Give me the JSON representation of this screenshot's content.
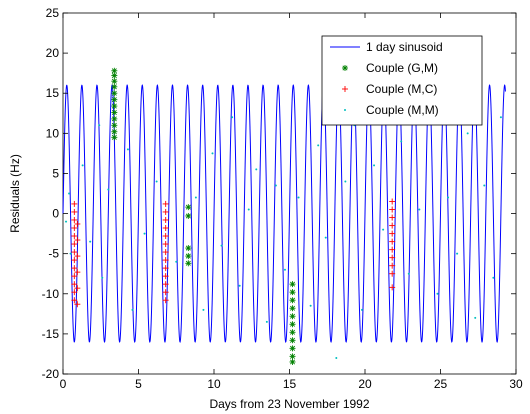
{
  "chart_data": {
    "type": "line",
    "xlabel": "Days from 23 November 1992",
    "ylabel": "Residuals (Hz)",
    "xlim": [
      0,
      30
    ],
    "ylim": [
      -20,
      25
    ],
    "xticks": [
      0,
      5,
      10,
      15,
      20,
      25,
      30
    ],
    "yticks": [
      -20,
      -15,
      -10,
      -5,
      0,
      5,
      10,
      15,
      20,
      25
    ],
    "grid": false,
    "legend_position": "top-right",
    "series": [
      {
        "name": "1 day sinusoid",
        "kind": "line",
        "color": "#0000ff",
        "amplitude": 16,
        "period_days": 1,
        "x_range": [
          0,
          29.3
        ]
      },
      {
        "name": "Couple (G,M)",
        "kind": "marker",
        "marker": "*",
        "color": "#008000",
        "points": [
          [
            3.4,
            17.8
          ],
          [
            3.4,
            17.2
          ],
          [
            3.4,
            16.5
          ],
          [
            3.4,
            15.8
          ],
          [
            3.4,
            15.0
          ],
          [
            3.4,
            14.2
          ],
          [
            3.4,
            13.4
          ],
          [
            3.4,
            12.6
          ],
          [
            3.4,
            11.8
          ],
          [
            3.4,
            11.0
          ],
          [
            3.4,
            10.2
          ],
          [
            3.4,
            9.5
          ],
          [
            8.3,
            0.8
          ],
          [
            8.3,
            -0.3
          ],
          [
            8.3,
            -4.3
          ],
          [
            8.3,
            -5.3
          ],
          [
            8.3,
            -6.2
          ],
          [
            15.2,
            -8.8
          ],
          [
            15.2,
            -9.8
          ],
          [
            15.2,
            -10.8
          ],
          [
            15.2,
            -11.8
          ],
          [
            15.2,
            -12.8
          ],
          [
            15.2,
            -13.8
          ],
          [
            15.2,
            -14.8
          ],
          [
            15.2,
            -15.8
          ],
          [
            15.2,
            -16.8
          ],
          [
            15.2,
            -17.8
          ],
          [
            15.2,
            -18.5
          ]
        ]
      },
      {
        "name": "Couple (M,C)",
        "kind": "marker",
        "marker": "+",
        "color": "#ff0000",
        "points": [
          [
            0.75,
            1.2
          ],
          [
            0.75,
            0.2
          ],
          [
            0.75,
            -0.8
          ],
          [
            0.75,
            -1.8
          ],
          [
            0.75,
            -2.8
          ],
          [
            0.75,
            -3.8
          ],
          [
            0.75,
            -4.8
          ],
          [
            0.75,
            -5.8
          ],
          [
            0.75,
            -6.8
          ],
          [
            0.75,
            -7.8
          ],
          [
            0.75,
            -8.8
          ],
          [
            0.75,
            -9.8
          ],
          [
            0.75,
            -10.8
          ],
          [
            0.95,
            -1.3
          ],
          [
            0.95,
            -3.3
          ],
          [
            0.95,
            -5.3
          ],
          [
            0.95,
            -7.3
          ],
          [
            0.95,
            -9.3
          ],
          [
            0.95,
            -11.3
          ],
          [
            6.8,
            1.2
          ],
          [
            6.8,
            0.2
          ],
          [
            6.8,
            -0.8
          ],
          [
            6.8,
            -1.8
          ],
          [
            6.8,
            -2.8
          ],
          [
            6.8,
            -3.8
          ],
          [
            6.8,
            -4.8
          ],
          [
            6.8,
            -5.8
          ],
          [
            6.8,
            -6.8
          ],
          [
            6.8,
            -7.8
          ],
          [
            6.8,
            -8.8
          ],
          [
            6.8,
            -9.8
          ],
          [
            6.8,
            -10.8
          ],
          [
            21.8,
            1.5
          ],
          [
            21.8,
            0.5
          ],
          [
            21.8,
            -0.5
          ],
          [
            21.8,
            -1.5
          ],
          [
            21.8,
            -2.5
          ],
          [
            21.8,
            -3.5
          ],
          [
            21.8,
            -4.5
          ],
          [
            21.8,
            -5.5
          ],
          [
            21.8,
            -6.5
          ],
          [
            21.8,
            -7.5
          ],
          [
            21.8,
            -9.2
          ]
        ]
      },
      {
        "name": "Couple (M,M)",
        "kind": "marker",
        "marker": ".",
        "color": "#00bfbf",
        "points": [
          [
            0.2,
            -1.0
          ],
          [
            0.4,
            2.5
          ],
          [
            0.5,
            -5.0
          ],
          [
            1.3,
            6.0
          ],
          [
            1.8,
            -3.5
          ],
          [
            2.4,
            11.0
          ],
          [
            2.6,
            -8.0
          ],
          [
            3.0,
            3.0
          ],
          [
            4.3,
            8.0
          ],
          [
            4.6,
            -12.0
          ],
          [
            5.4,
            -2.5
          ],
          [
            6.2,
            4.0
          ],
          [
            7.5,
            -6.0
          ],
          [
            8.8,
            2.0
          ],
          [
            9.3,
            -12.0
          ],
          [
            9.9,
            7.5
          ],
          [
            10.5,
            -4.0
          ],
          [
            11.2,
            12.0
          ],
          [
            11.7,
            -9.0
          ],
          [
            12.3,
            0.5
          ],
          [
            12.8,
            5.5
          ],
          [
            13.5,
            -13.5
          ],
          [
            14.1,
            3.5
          ],
          [
            14.7,
            -7.0
          ],
          [
            15.6,
            2.0
          ],
          [
            16.4,
            -11.5
          ],
          [
            16.9,
            8.5
          ],
          [
            17.4,
            -3.0
          ],
          [
            18.1,
            -18.0
          ],
          [
            18.7,
            4.0
          ],
          [
            19.3,
            11.0
          ],
          [
            19.8,
            -12.0
          ],
          [
            20.6,
            6.0
          ],
          [
            21.2,
            -2.0
          ],
          [
            22.4,
            9.0
          ],
          [
            22.9,
            -7.5
          ],
          [
            23.6,
            0.5
          ],
          [
            24.2,
            13.0
          ],
          [
            24.8,
            -10.0
          ],
          [
            25.5,
            2.0
          ],
          [
            26.1,
            -5.0
          ],
          [
            26.8,
            10.0
          ],
          [
            27.3,
            -13.0
          ],
          [
            27.9,
            3.5
          ],
          [
            28.5,
            -8.0
          ],
          [
            29.0,
            12.0
          ]
        ]
      }
    ]
  }
}
